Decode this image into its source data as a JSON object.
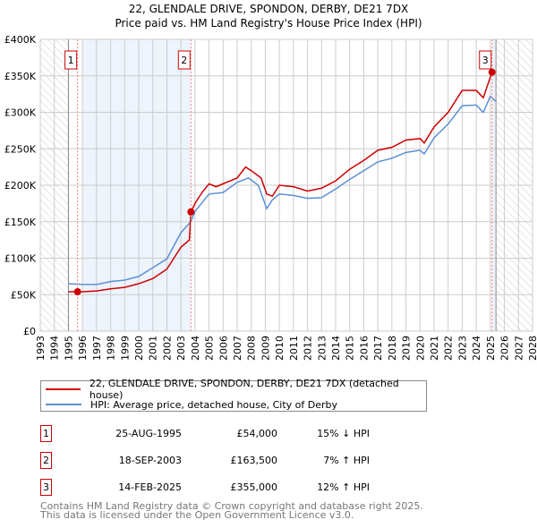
{
  "chart_data": {
    "type": "line",
    "title": "22, GLENDALE DRIVE, SPONDON, DERBY, DE21 7DX",
    "subtitle": "Price paid vs. HM Land Registry's House Price Index (HPI)",
    "xlim": [
      1993,
      2028
    ],
    "ylim": [
      0,
      400000
    ],
    "grid": true,
    "x_ticks": [
      "1993",
      "1994",
      "1995",
      "1996",
      "1997",
      "1998",
      "1999",
      "2000",
      "2001",
      "2002",
      "2003",
      "2004",
      "2005",
      "2006",
      "2007",
      "2008",
      "2009",
      "2010",
      "2011",
      "2012",
      "2013",
      "2014",
      "2015",
      "2016",
      "2017",
      "2018",
      "2019",
      "2020",
      "2021",
      "2022",
      "2023",
      "2024",
      "2025",
      "2026",
      "2027",
      "2028"
    ],
    "y_ticks": [
      {
        "v": 0,
        "label": "£0"
      },
      {
        "v": 50000,
        "label": "£50K"
      },
      {
        "v": 100000,
        "label": "£100K"
      },
      {
        "v": 150000,
        "label": "£150K"
      },
      {
        "v": 200000,
        "label": "£200K"
      },
      {
        "v": 250000,
        "label": "£250K"
      },
      {
        "v": 300000,
        "label": "£300K"
      },
      {
        "v": 350000,
        "label": "£350K"
      },
      {
        "v": 400000,
        "label": "£400K"
      }
    ],
    "hatched_ranges": [
      [
        1993,
        1995
      ],
      [
        2025.4,
        2028
      ]
    ],
    "shaded_ranges": [
      [
        1996,
        2003.71
      ],
      [
        2025.12,
        2025.4
      ]
    ],
    "series": [
      {
        "name": "22, GLENDALE DRIVE, SPONDON, DERBY, DE21 7DX (detached house)",
        "color": "#cc0000",
        "x": [
          1995,
          1995.65,
          1996,
          1997,
          1998,
          1999,
          2000,
          2001,
          2002,
          2002.5,
          2003,
          2003.6,
          2003.71,
          2004,
          2004.5,
          2005,
          2005.5,
          2006,
          2007,
          2007.6,
          2008,
          2008.7,
          2009.1,
          2009.5,
          2010,
          2011,
          2012,
          2013,
          2014,
          2015,
          2016,
          2017,
          2018,
          2019,
          2020,
          2020.3,
          2021,
          2022,
          2023,
          2024,
          2024.5,
          2025.12
        ],
        "y": [
          54000,
          54000,
          54000,
          55000,
          58000,
          60000,
          65000,
          72000,
          85000,
          100000,
          115000,
          125000,
          163500,
          175000,
          190000,
          202000,
          198000,
          202000,
          210000,
          225000,
          220000,
          210000,
          188000,
          185000,
          200000,
          198000,
          192000,
          196000,
          206000,
          222000,
          234000,
          248000,
          252000,
          262000,
          264000,
          258000,
          280000,
          300000,
          330000,
          330000,
          320000,
          355000
        ]
      },
      {
        "name": "HPI: Average price, detached house, City of Derby",
        "color": "#5b8fd4",
        "x": [
          1995,
          1996,
          1997,
          1998,
          1999,
          2000,
          2001,
          2002,
          2003,
          2003.7,
          2004,
          2005,
          2006,
          2007,
          2007.8,
          2008.5,
          2009.1,
          2009.5,
          2010,
          2011,
          2012,
          2013,
          2014,
          2015,
          2016,
          2017,
          2018,
          2019,
          2020,
          2020.3,
          2021,
          2022,
          2023,
          2024,
          2024.5,
          2025,
          2025.4
        ],
        "y": [
          65000,
          64000,
          64000,
          68000,
          70000,
          75000,
          87000,
          99000,
          135000,
          150000,
          164000,
          188000,
          190000,
          204000,
          210000,
          200000,
          168000,
          180000,
          188000,
          186000,
          182000,
          183000,
          195000,
          208000,
          220000,
          232000,
          237000,
          245000,
          248000,
          243000,
          265000,
          284000,
          309000,
          310000,
          300000,
          322000,
          315000
        ]
      }
    ],
    "sales": [
      {
        "id": "1",
        "x": 1995.65,
        "y": 54000,
        "date": "25-AUG-1995",
        "price": "£54,000",
        "hpi": "15% ↓ HPI"
      },
      {
        "id": "2",
        "x": 2003.71,
        "y": 163500,
        "date": "18-SEP-2003",
        "price": "£163,500",
        "hpi": "7% ↑ HPI"
      },
      {
        "id": "3",
        "x": 2025.12,
        "y": 355000,
        "date": "14-FEB-2025",
        "price": "£355,000",
        "hpi": "12% ↑ HPI"
      }
    ]
  },
  "legend": {
    "red": "22, GLENDALE DRIVE, SPONDON, DERBY, DE21 7DX (detached house)",
    "blue": "HPI: Average price, detached house, City of Derby"
  },
  "footer": {
    "line1": "Contains HM Land Registry data © Crown copyright and database right 2025.",
    "line2": "This data is licensed under the Open Government Licence v3.0."
  }
}
